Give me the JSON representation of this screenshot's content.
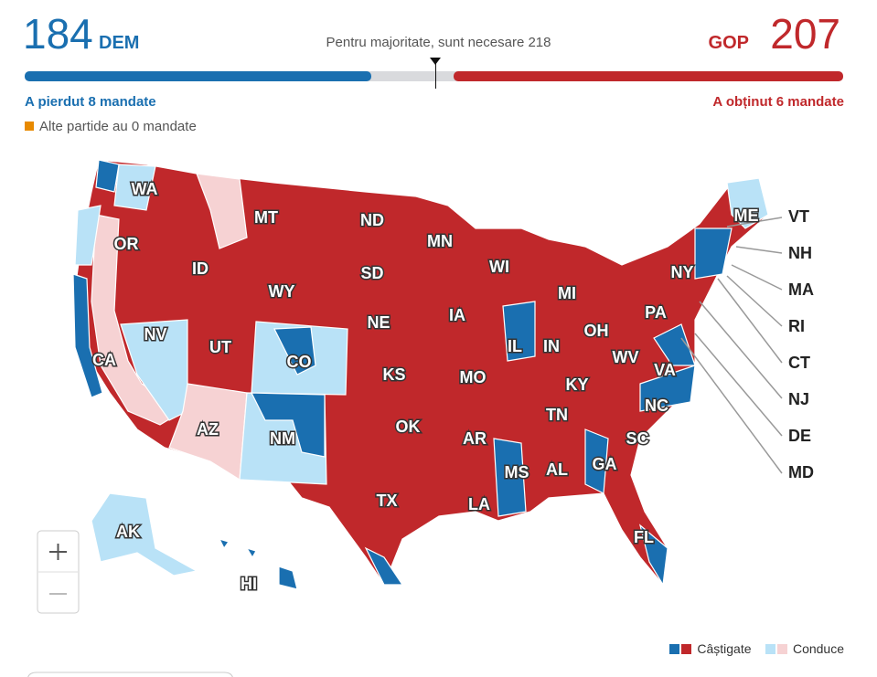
{
  "header": {
    "dem_seats": 184,
    "dem_label": "DEM",
    "gop_label": "GOP",
    "gop_seats": 207,
    "majority_label": "Pentru majoritate, sunt necesare",
    "majority": 218,
    "seat_range": [
      0,
      435
    ],
    "dem_color": "#1a6fb0",
    "gop_color": "#c0282b",
    "dem_change": "A pierdut 8 mandate",
    "gop_change": "A obținut 6 mandate",
    "others": "Alte partide au 0 mandate"
  },
  "map": {
    "states": [
      "WA",
      "OR",
      "ID",
      "MT",
      "ND",
      "MN",
      "WI",
      "MI",
      "NY",
      "ME",
      "SD",
      "WY",
      "NE",
      "IA",
      "IL",
      "IN",
      "OH",
      "PA",
      "NV",
      "UT",
      "CO",
      "KS",
      "MO",
      "KY",
      "WV",
      "VA",
      "CA",
      "AZ",
      "NM",
      "OK",
      "AR",
      "TN",
      "NC",
      "SC",
      "TX",
      "MS",
      "AL",
      "GA",
      "LA",
      "FL",
      "AK",
      "HI"
    ],
    "small_states": [
      "VT",
      "NH",
      "MA",
      "RI",
      "CT",
      "NJ",
      "DE",
      "MD"
    ]
  },
  "legend": {
    "won": "Câștigate",
    "leading": "Conduce"
  }
}
